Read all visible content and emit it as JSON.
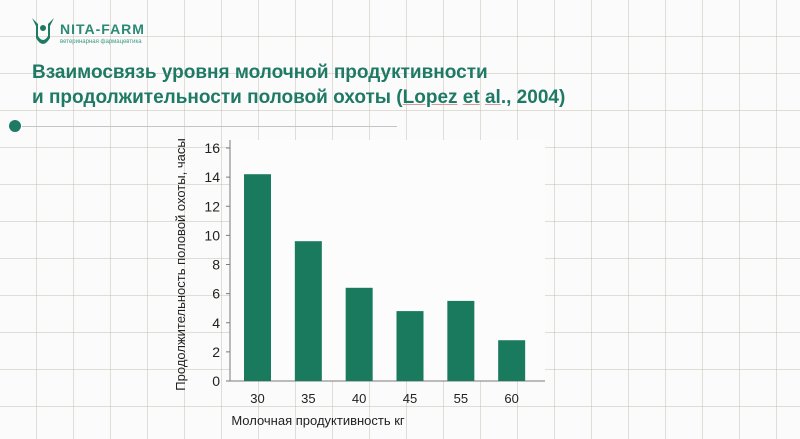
{
  "logo": {
    "name": "NITA-FARM",
    "tagline": "ветеринарная фармацевтика"
  },
  "slide": {
    "title_line1": "Взаимосвязь уровня молочной продуктивности",
    "title_line2_prefix": "и продолжительности половой охоты (",
    "title_author": "Lopez",
    "title_sep": " ",
    "title_etal": "et",
    "title_etal2": " ",
    "title_al": "al",
    "title_suffix": "., 2004)"
  },
  "colors": {
    "brand": "#1f7a65",
    "bar": "#1a7a5e",
    "accent": "#2b8a73"
  },
  "chart_data": {
    "type": "bar",
    "categories": [
      "30",
      "35",
      "40",
      "45",
      "55",
      "60"
    ],
    "values": [
      14.2,
      9.6,
      6.4,
      4.8,
      5.5,
      2.8
    ],
    "yticks": [
      0,
      2,
      4,
      6,
      8,
      10,
      12,
      14,
      16
    ],
    "ylim": [
      0,
      16
    ],
    "xlabel": "Молочная продуктивность кг",
    "ylabel": "Продолжительность половой охоты, часы",
    "grid": false,
    "legend": "none"
  }
}
